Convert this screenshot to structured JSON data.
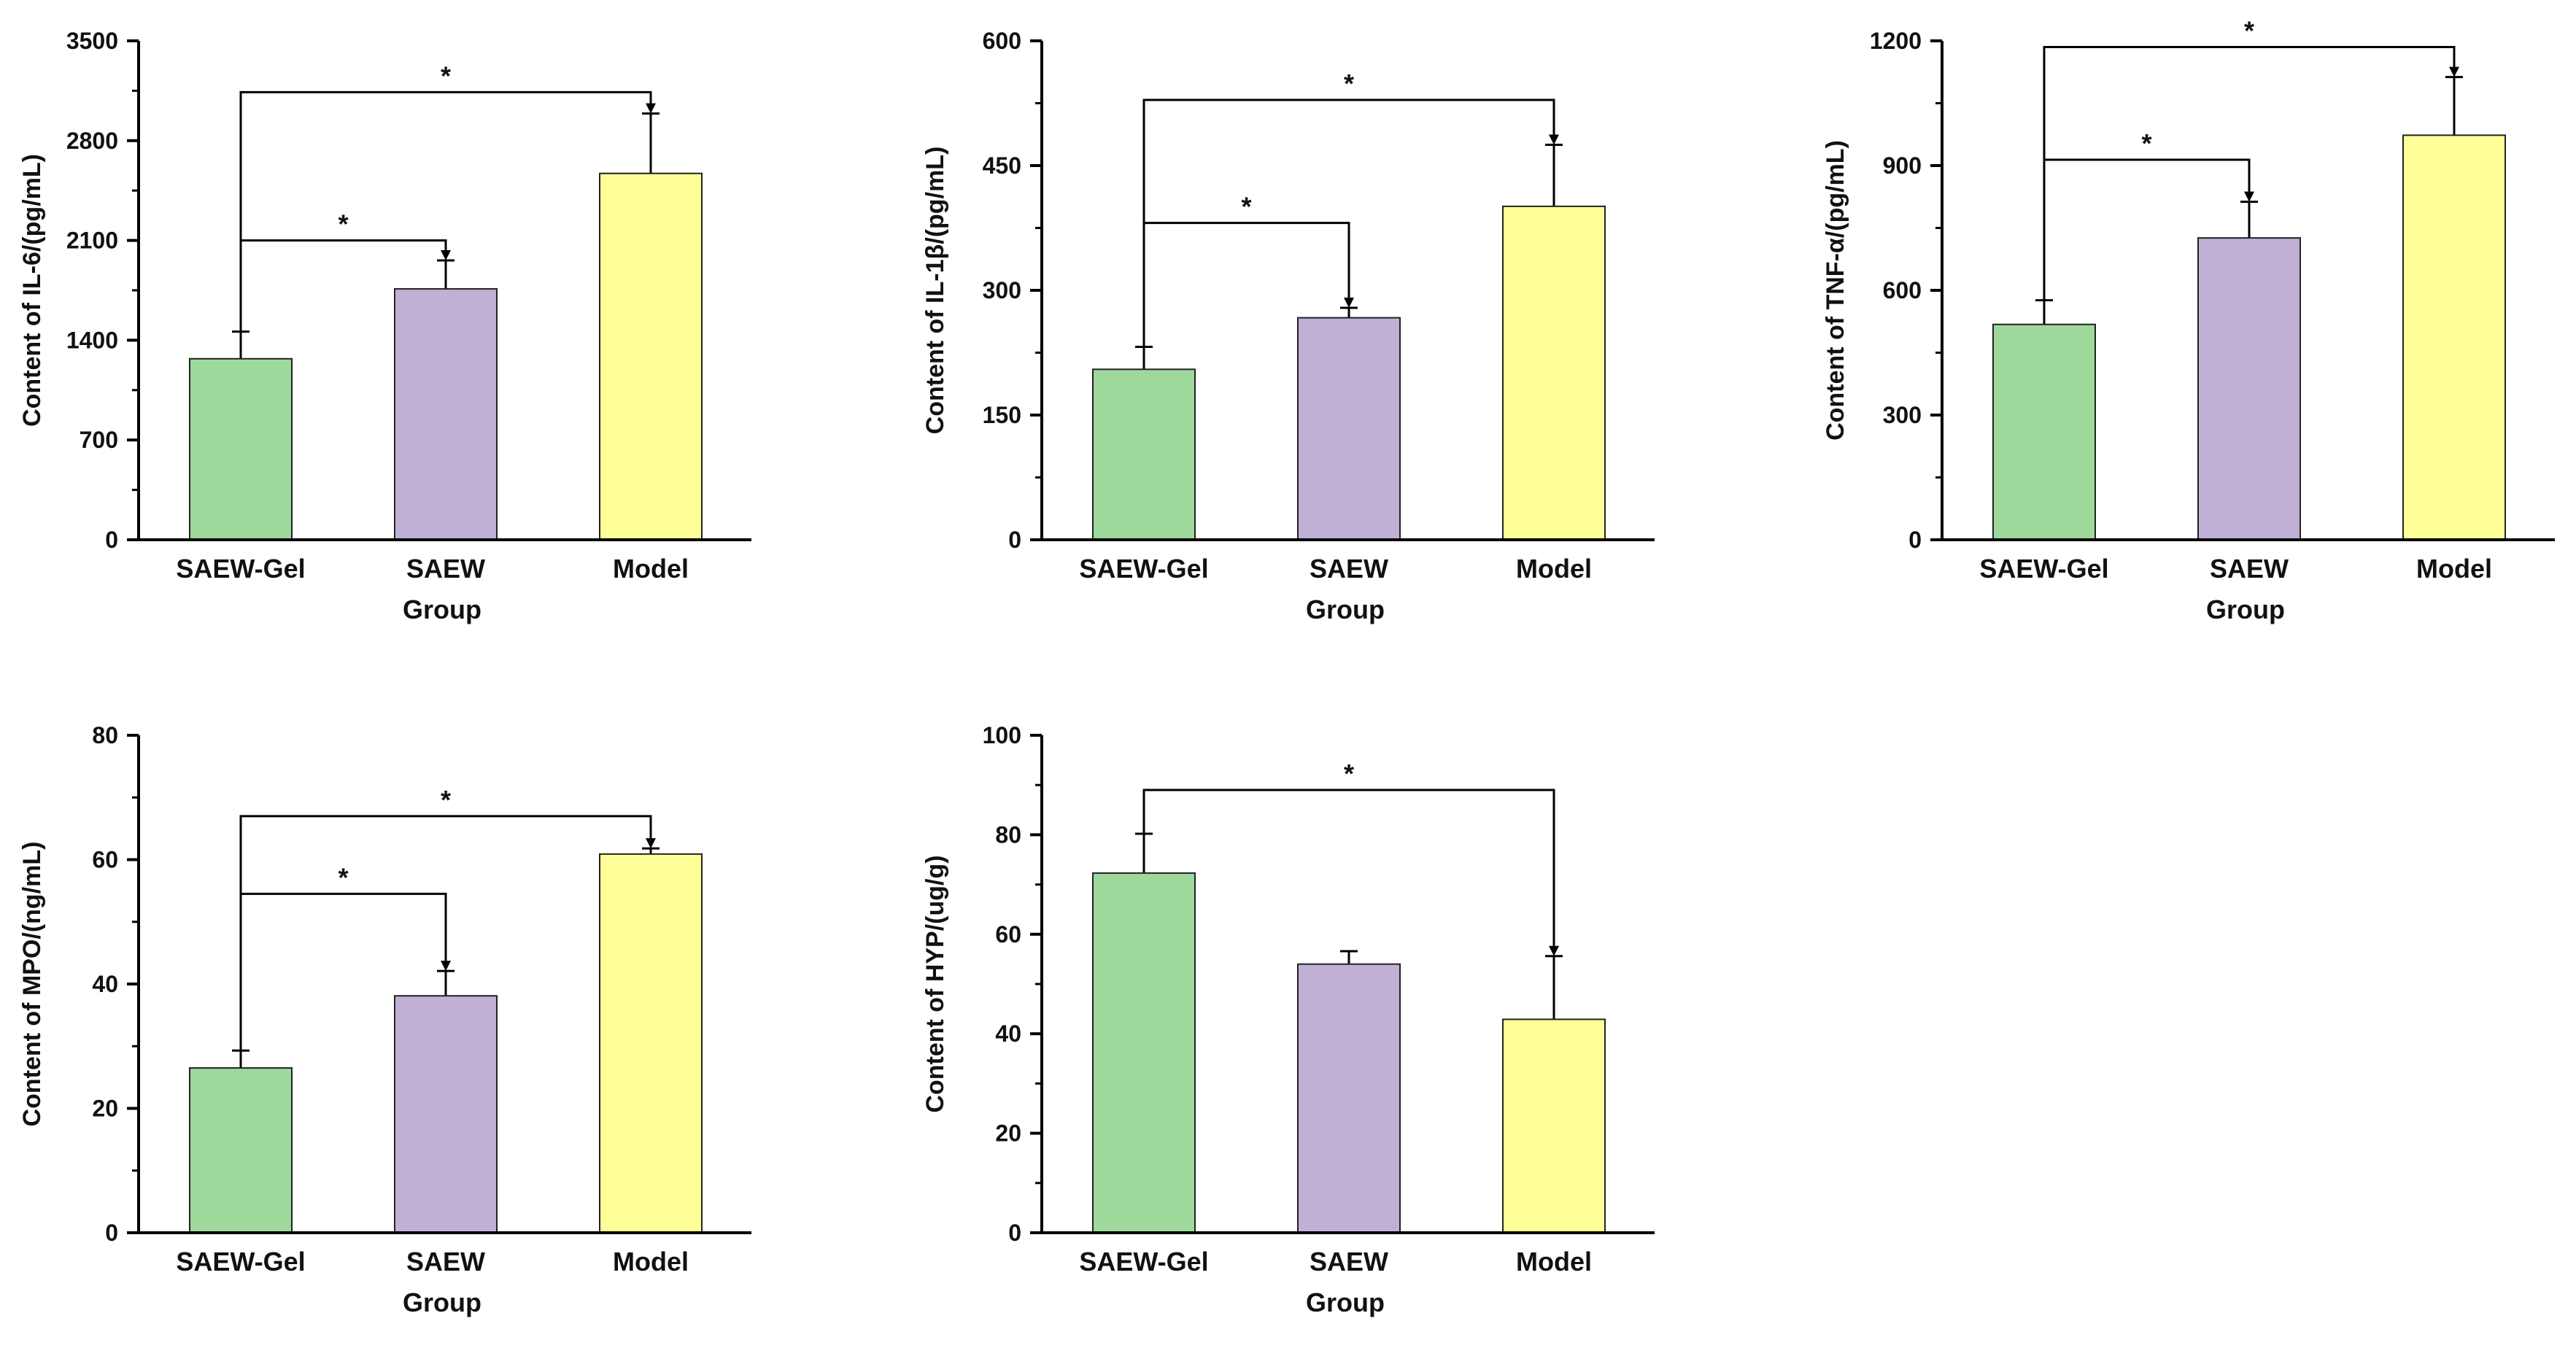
{
  "colors": {
    "SAEW-Gel": "#9ed99b",
    "SAEW": "#c0b0d6",
    "Model": "#ffff99",
    "axis": "#000000"
  },
  "chart_data": [
    {
      "type": "bar",
      "categories": [
        "SAEW-Gel",
        "SAEW",
        "Model"
      ],
      "values": [
        1270,
        1760,
        2570
      ],
      "errors": [
        190,
        200,
        420
      ],
      "xlabel": "Group",
      "ylabel": "Content of IL-6/(pg/mL)",
      "ylim": [
        0,
        3500
      ],
      "yticks": [
        0,
        700,
        1400,
        2100,
        2800,
        3500
      ],
      "significance": [
        {
          "from": 0,
          "to": 1,
          "at": 2100,
          "label": "*"
        },
        {
          "from": 0,
          "to": 2,
          "at": 3140,
          "label": "*"
        }
      ]
    },
    {
      "type": "bar",
      "categories": [
        "SAEW-Gel",
        "SAEW",
        "Model"
      ],
      "values": [
        205,
        267,
        401
      ],
      "errors": [
        27,
        12,
        74
      ],
      "xlabel": "Group",
      "ylabel": "Content of IL-1β/(pg/mL)",
      "ylim": [
        0,
        600
      ],
      "yticks": [
        0,
        150,
        300,
        450,
        600
      ],
      "significance": [
        {
          "from": 0,
          "to": 1,
          "at": 381,
          "label": "*"
        },
        {
          "from": 0,
          "to": 2,
          "at": 529,
          "label": "*"
        }
      ]
    },
    {
      "type": "bar",
      "categories": [
        "SAEW-Gel",
        "SAEW",
        "Model"
      ],
      "values": [
        518,
        726,
        973
      ],
      "errors": [
        58,
        87,
        140
      ],
      "xlabel": "Group",
      "ylabel": "Content of TNF-α/(pg/mL)",
      "ylim": [
        0,
        1200
      ],
      "yticks": [
        0,
        300,
        600,
        900,
        1200
      ],
      "significance": [
        {
          "from": 0,
          "to": 1,
          "at": 914,
          "label": "*"
        },
        {
          "from": 0,
          "to": 2,
          "at": 1185,
          "label": "*"
        }
      ]
    },
    {
      "type": "bar",
      "categories": [
        "SAEW-Gel",
        "SAEW",
        "Model"
      ],
      "values": [
        26.5,
        38.1,
        60.9
      ],
      "errors": [
        2.8,
        4.0,
        0.9
      ],
      "xlabel": "Group",
      "ylabel": "Content of MPO/(ng/mL)",
      "ylim": [
        0,
        80
      ],
      "yticks": [
        0,
        20,
        40,
        60,
        80
      ],
      "significance": [
        {
          "from": 0,
          "to": 1,
          "at": 54.5,
          "label": "*"
        },
        {
          "from": 0,
          "to": 2,
          "at": 67.0,
          "label": "*"
        }
      ]
    },
    {
      "type": "bar",
      "categories": [
        "SAEW-Gel",
        "SAEW",
        "Model"
      ],
      "values": [
        72.3,
        54.0,
        42.9
      ],
      "errors": [
        7.9,
        2.6,
        12.7
      ],
      "xlabel": "Group",
      "ylabel": "Content of HYP/(ug/g)",
      "ylim": [
        0,
        100
      ],
      "yticks": [
        0,
        20,
        40,
        60,
        80,
        100
      ],
      "significance": [
        {
          "from": 0,
          "to": 2,
          "at": 89.0,
          "label": "*"
        }
      ]
    }
  ]
}
